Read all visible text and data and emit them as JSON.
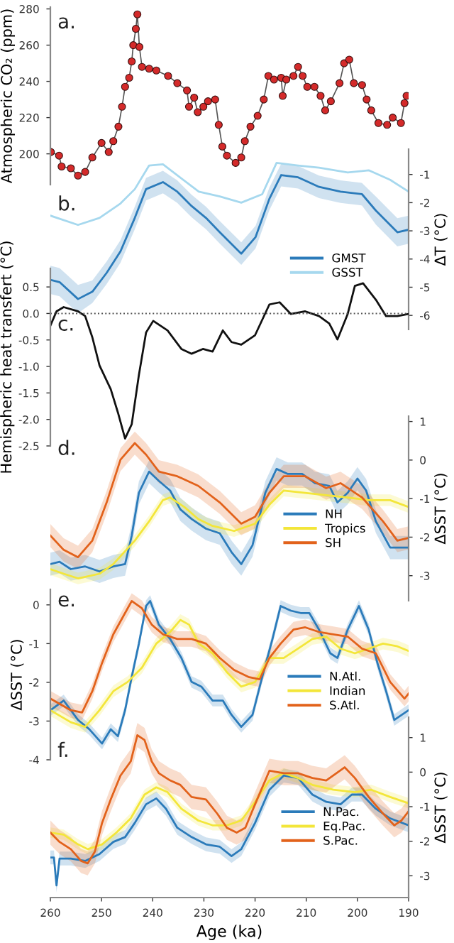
{
  "chart_data": [
    {
      "type": "line",
      "ylabel": "Atmospheric CO₂ (ppm)",
      "annotations": [
        "a."
      ],
      "xlim": [
        260,
        190
      ],
      "ylim": [
        183,
        281
      ],
      "yticks": [
        200,
        220,
        240,
        260,
        280
      ],
      "tick_labels": "y",
      "marker": "circle",
      "series": [
        {
          "color": "#d42a2a",
          "x": [
            259.9,
            258.3,
            257.8,
            256,
            254.6,
            253.2,
            251.8,
            250,
            248.6,
            247.7,
            246.7,
            246,
            245.4,
            244.6,
            244.1,
            243.8,
            243.3,
            243,
            242.6,
            242.1,
            240.7,
            239.3,
            237,
            235.2,
            233.3,
            232.9,
            231.9,
            231.2,
            230.1,
            229.2,
            227.8,
            227.1,
            226.4,
            225.5,
            223.8,
            222.7,
            222,
            220.9,
            219.5,
            218.3,
            217.4,
            216.3,
            214.9,
            214.6,
            213.9,
            212.5,
            211.6,
            210.7,
            209.8,
            208.4,
            207.2,
            206.3,
            205.2,
            203.5,
            202.6,
            201.6,
            200.7,
            199.1,
            198.2,
            197.3,
            195.9,
            194.2,
            193.1,
            191.5,
            190.8,
            190.4
          ],
          "values": [
            201,
            199,
            193,
            192,
            188,
            190,
            198,
            206,
            201,
            207,
            215,
            226,
            237,
            242,
            251,
            260,
            269,
            277,
            259,
            248,
            247,
            246,
            243,
            239,
            235,
            226,
            231,
            223,
            226,
            229,
            230,
            216,
            204,
            199,
            195,
            198,
            207,
            215,
            221,
            230,
            243,
            241,
            242,
            232,
            241,
            243,
            248,
            243,
            237,
            237,
            232,
            224,
            229,
            239,
            250,
            252,
            239,
            238,
            230,
            224,
            217,
            216,
            220,
            217,
            228,
            232
          ]
        }
      ]
    },
    {
      "type": "line",
      "y2label": "ΔT (°C)",
      "annotations": [
        "b."
      ],
      "xlim": [
        260,
        190
      ],
      "y2lim": [
        -6.5,
        -0.1
      ],
      "y2ticks": [
        -1,
        -2,
        -3,
        -4,
        -5,
        -6
      ],
      "tick_labels": "y2",
      "legend": "bottom right",
      "series": [
        {
          "name": "GMST",
          "color": "#2b7bba",
          "axis": "y2",
          "x": [
            260,
            258.2,
            254.6,
            251.8,
            249,
            246.3,
            243.5,
            241.3,
            238,
            235.2,
            232.4,
            229.6,
            226.9,
            222.7,
            219.9,
            217.2,
            214.9,
            211.6,
            207.5,
            203.3,
            199.1,
            196.4,
            192.2,
            190
          ],
          "values": [
            -4.74,
            -4.82,
            -5.42,
            -5.16,
            -4.49,
            -3.73,
            -2.54,
            -1.52,
            -1.27,
            -1.61,
            -2.12,
            -2.54,
            -3.05,
            -3.81,
            -3.22,
            -1.86,
            -1.02,
            -1.1,
            -1.44,
            -1.61,
            -1.7,
            -2.28,
            -3.05,
            -2.96
          ],
          "upper": [
            -4.24,
            -4.32,
            -4.92,
            -4.76,
            -4.09,
            -3.33,
            -2.14,
            -1.12,
            -0.87,
            -1.21,
            -1.72,
            -2.14,
            -2.65,
            -3.41,
            -2.82,
            -1.46,
            -0.62,
            -0.7,
            -1.04,
            -1.21,
            -1.3,
            -1.78,
            -2.55,
            -2.46
          ],
          "lower": [
            -5.24,
            -5.32,
            -5.92,
            -5.56,
            -4.89,
            -4.13,
            -2.94,
            -1.92,
            -1.67,
            -2.01,
            -2.52,
            -2.94,
            -3.45,
            -4.21,
            -3.62,
            -2.26,
            -1.42,
            -1.5,
            -1.84,
            -2.01,
            -2.1,
            -2.78,
            -3.55,
            -3.46
          ]
        },
        {
          "name": "GSST",
          "color": "#a6d8ee",
          "axis": "y2",
          "x": [
            260,
            254.6,
            250.4,
            246.3,
            243.5,
            240.7,
            238,
            231,
            226.9,
            222.7,
            218.6,
            215.8,
            211.6,
            207.5,
            201.9,
            197.8,
            193.6,
            190
          ],
          "values": [
            -2.46,
            -2.79,
            -2.54,
            -2.03,
            -1.52,
            -0.68,
            -0.64,
            -1.61,
            -1.78,
            -2.0,
            -1.7,
            -0.59,
            -0.68,
            -0.76,
            -0.93,
            -0.85,
            -1.19,
            -1.61
          ]
        }
      ]
    },
    {
      "type": "line",
      "ylabel": "Hemispheric heat transfert (°C)",
      "annotations": [
        "c."
      ],
      "xlim": [
        260,
        190
      ],
      "ylim": [
        -2.5,
        0.85
      ],
      "yticks": [
        0.5,
        {
          "value": 0,
          "label": "0.0"
        },
        -0.5,
        {
          "value": -1,
          "label": "-1.0"
        },
        -1.5,
        {
          "value": -2,
          "label": "-2.0"
        },
        -2.5
      ],
      "tick_labels": "y",
      "ref_lines": [
        {
          "axis": "y",
          "value": 0,
          "color": "#555555",
          "line_style": "dotted"
        }
      ],
      "series": [
        {
          "color": "#111111",
          "x": [
            260,
            258.8,
            257.4,
            254.6,
            253.2,
            251.8,
            250.4,
            248.2,
            246.8,
            245.4,
            244.1,
            242.7,
            241.3,
            239.9,
            237.1,
            234.4,
            232.4,
            230.2,
            228.3,
            226.3,
            224.6,
            222.7,
            220,
            217.2,
            215.2,
            213,
            210.2,
            207.5,
            205.5,
            203.9,
            201.9,
            200.5,
            198.9,
            196.4,
            194.4,
            192.2,
            190
          ],
          "values": [
            -0.23,
            0.04,
            0.12,
            0.04,
            -0.05,
            -0.45,
            -0.98,
            -1.43,
            -1.87,
            -2.36,
            -2.09,
            -1.16,
            -0.36,
            -0.14,
            -0.32,
            -0.67,
            -0.76,
            -0.67,
            -0.72,
            -0.32,
            -0.54,
            -0.59,
            -0.41,
            0.17,
            0.21,
            -0.01,
            0.04,
            -0.05,
            -0.19,
            -0.49,
            -0.01,
            0.52,
            0.57,
            0.26,
            -0.05,
            -0.05,
            -0.01
          ]
        }
      ]
    },
    {
      "type": "line",
      "y2label": "ΔSST (°C)",
      "annotations": [
        "d."
      ],
      "xlim": [
        260,
        190
      ],
      "y2lim": [
        -3.65,
        1.14
      ],
      "y2ticks": [
        1,
        0,
        -1,
        -2,
        -3
      ],
      "tick_labels": "y2",
      "legend": "bottom right",
      "series": [
        {
          "name": "NH",
          "color": "#2b7bba",
          "axis": "y2",
          "x": [
            260,
            258.2,
            256,
            253.2,
            250.4,
            247.7,
            245.4,
            244.1,
            242.7,
            240.7,
            238.8,
            236.6,
            234.6,
            232.4,
            229.6,
            226.9,
            224.6,
            222.7,
            220.5,
            218,
            215.8,
            213.6,
            210.8,
            208.3,
            205.5,
            203.9,
            201.9,
            200,
            198.3,
            196.4,
            193.6,
            190
          ],
          "values": [
            -2.7,
            -2.64,
            -2.83,
            -2.76,
            -2.89,
            -2.76,
            -2.7,
            -1.96,
            -0.85,
            -0.3,
            -0.54,
            -0.79,
            -1.28,
            -1.53,
            -1.78,
            -1.9,
            -2.39,
            -2.7,
            -2.21,
            -0.85,
            -0.23,
            -0.36,
            -0.36,
            -0.6,
            -0.67,
            -1.1,
            -0.85,
            -0.48,
            -0.79,
            -1.59,
            -2.27,
            -2.27
          ],
          "upper": [
            -2.4,
            -2.34,
            -2.53,
            -2.46,
            -2.59,
            -2.46,
            -2.4,
            -1.66,
            -0.55,
            0.0,
            -0.24,
            -0.49,
            -0.98,
            -1.23,
            -1.48,
            -1.6,
            -2.09,
            -2.4,
            -1.91,
            -0.55,
            0.07,
            -0.06,
            -0.06,
            -0.3,
            -0.37,
            -0.8,
            -0.55,
            -0.18,
            -0.49,
            -1.29,
            -1.97,
            -1.97
          ],
          "lower": [
            -3.0,
            -2.94,
            -3.13,
            -3.06,
            -3.19,
            -3.06,
            -3.0,
            -2.26,
            -1.15,
            -0.6,
            -0.84,
            -1.09,
            -1.58,
            -1.83,
            -2.08,
            -2.2,
            -2.69,
            -3.0,
            -2.51,
            -1.15,
            -0.53,
            -0.66,
            -0.66,
            -0.9,
            -0.97,
            -1.4,
            -1.15,
            -0.78,
            -1.09,
            -1.89,
            -2.57,
            -2.57
          ]
        },
        {
          "name": "Tropics",
          "color": "#f3e63a",
          "axis": "y2",
          "x": [
            260,
            257.4,
            254.6,
            250.4,
            247.7,
            243.5,
            240.7,
            238,
            236.6,
            233.8,
            231.1,
            228.3,
            224.1,
            220,
            217.2,
            214.4,
            210.2,
            206.1,
            201.9,
            197.8,
            193.6,
            190
          ],
          "values": [
            -2.83,
            -2.95,
            -3.07,
            -2.95,
            -2.7,
            -2.09,
            -1.59,
            -1.04,
            -0.97,
            -1.22,
            -1.53,
            -1.71,
            -1.84,
            -1.65,
            -1.16,
            -0.79,
            -0.85,
            -0.91,
            -0.97,
            -1.04,
            -1.04,
            -1.22
          ],
          "upper": [
            -2.68,
            -2.8,
            -2.92,
            -2.8,
            -2.55,
            -1.94,
            -1.44,
            -0.89,
            -0.82,
            -1.07,
            -1.38,
            -1.56,
            -1.69,
            -1.5,
            -1.01,
            -0.64,
            -0.7,
            -0.76,
            -0.82,
            -0.89,
            -0.89,
            -1.07
          ],
          "lower": [
            -2.98,
            -3.1,
            -3.22,
            -3.1,
            -2.85,
            -2.24,
            -1.74,
            -1.19,
            -1.12,
            -1.37,
            -1.68,
            -1.86,
            -1.99,
            -1.8,
            -1.31,
            -0.94,
            -1.0,
            -1.06,
            -1.12,
            -1.19,
            -1.19,
            -1.37
          ]
        },
        {
          "name": "SH",
          "color": "#e2621b",
          "axis": "y2",
          "x": [
            260,
            257.4,
            254.6,
            251.8,
            249,
            246.3,
            243.5,
            241.3,
            238.8,
            235.2,
            231.1,
            226.9,
            222.7,
            220,
            217.2,
            214.4,
            210.2,
            206.1,
            203.3,
            199.1,
            195,
            192.2,
            190
          ],
          "values": [
            -1.96,
            -2.33,
            -2.52,
            -2.09,
            -1.1,
            0.01,
            0.44,
            0.14,
            -0.3,
            -0.42,
            -0.67,
            -1.1,
            -1.65,
            -1.47,
            -0.85,
            -0.42,
            -0.42,
            -0.73,
            -0.6,
            -0.97,
            -1.59,
            -2.09,
            -2.02
          ],
          "upper": [
            -1.66,
            -2.03,
            -2.22,
            -1.79,
            -0.8,
            0.31,
            0.74,
            0.44,
            0.0,
            -0.12,
            -0.37,
            -0.8,
            -1.35,
            -1.17,
            -0.55,
            -0.12,
            -0.12,
            -0.43,
            -0.3,
            -0.67,
            -1.29,
            -1.79,
            -1.72
          ],
          "lower": [
            -2.26,
            -2.63,
            -2.82,
            -2.39,
            -1.4,
            -0.29,
            0.14,
            -0.16,
            -0.6,
            -0.72,
            -0.97,
            -1.4,
            -1.95,
            -1.77,
            -1.15,
            -0.72,
            -0.72,
            -1.03,
            -0.9,
            -1.27,
            -1.89,
            -2.39,
            -2.32
          ]
        }
      ]
    },
    {
      "type": "line",
      "ylabel": "ΔSST (°C)",
      "annotations": [
        "e."
      ],
      "xlim": [
        260,
        190
      ],
      "ylim": [
        -4,
        0.4
      ],
      "yticks": [
        0,
        -1,
        -2,
        -3,
        -4
      ],
      "tick_labels": "y",
      "legend": "bottom right",
      "series": [
        {
          "name": "N.Atl.",
          "color": "#2b7bba",
          "x": [
            260,
            257.4,
            254.6,
            252.4,
            249.9,
            248.2,
            246.8,
            245.4,
            244.1,
            242.7,
            241.3,
            240.5,
            238.8,
            236.6,
            234.4,
            232.4,
            230.5,
            228.3,
            226.3,
            224.6,
            222.7,
            220.5,
            218.6,
            216.6,
            215,
            213,
            211.1,
            209.4,
            207.5,
            205.3,
            203.9,
            201.9,
            199.7,
            197.8,
            196.1,
            194.4,
            192.8,
            190
          ],
          "values": [
            -2.72,
            -2.47,
            -2.97,
            -3.21,
            -3.58,
            -3.21,
            -3.39,
            -2.72,
            -1.86,
            -1.0,
            -0.03,
            0.1,
            -0.51,
            -0.88,
            -1.37,
            -1.99,
            -2.11,
            -2.47,
            -2.47,
            -2.84,
            -3.15,
            -2.84,
            -1.86,
            -0.88,
            -0.03,
            -0.15,
            -0.21,
            -0.21,
            -0.64,
            -1.25,
            -1.37,
            -0.64,
            -0.03,
            -0.64,
            -1.5,
            -2.23,
            -2.97,
            -2.72
          ],
          "upper": [
            -2.57,
            -2.32,
            -2.82,
            -3.06,
            -3.43,
            -3.06,
            -3.24,
            -2.57,
            -1.71,
            -0.85,
            0.12,
            0.25,
            -0.36,
            -0.73,
            -1.22,
            -1.84,
            -1.96,
            -2.32,
            -2.32,
            -2.69,
            -3.0,
            -2.69,
            -1.71,
            -0.73,
            0.12,
            0.0,
            -0.06,
            -0.06,
            -0.49,
            -1.1,
            -1.22,
            -0.49,
            0.12,
            -0.49,
            -1.35,
            -2.08,
            -2.82,
            -2.57
          ],
          "lower": [
            -2.87,
            -2.62,
            -3.12,
            -3.36,
            -3.73,
            -3.36,
            -3.54,
            -2.87,
            -2.01,
            -1.15,
            -0.18,
            -0.05,
            -0.66,
            -1.03,
            -1.52,
            -2.14,
            -2.26,
            -2.62,
            -2.62,
            -2.99,
            -3.3,
            -2.99,
            -2.01,
            -1.03,
            -0.18,
            -0.3,
            -0.36,
            -0.36,
            -0.79,
            -1.4,
            -1.52,
            -0.79,
            -0.18,
            -0.79,
            -1.65,
            -2.38,
            -3.12,
            -2.87
          ]
        },
        {
          "name": "Indian",
          "color": "#f3e63a",
          "x": [
            260,
            256,
            253.2,
            250.4,
            247.7,
            244.9,
            242.1,
            239.3,
            236.6,
            234.6,
            232.9,
            231,
            228.3,
            225.5,
            222.7,
            220,
            217.2,
            214.4,
            211.6,
            208.8,
            206.1,
            203.3,
            200.5,
            197.8,
            195,
            192.2,
            190
          ],
          "values": [
            -2.72,
            -3.03,
            -3.15,
            -2.72,
            -2.23,
            -1.99,
            -1.62,
            -1.0,
            -0.7,
            -0.39,
            -0.51,
            -1.0,
            -1.25,
            -1.74,
            -2.11,
            -1.99,
            -1.37,
            -1.37,
            -1.13,
            -0.88,
            -0.82,
            -1.13,
            -1.25,
            -1.13,
            -1.0,
            -1.07,
            -1.19
          ],
          "upper": [
            -2.57,
            -2.88,
            -3.0,
            -2.57,
            -2.08,
            -1.84,
            -1.47,
            -0.85,
            -0.55,
            -0.24,
            -0.36,
            -0.85,
            -1.1,
            -1.59,
            -1.96,
            -1.84,
            -1.22,
            -1.22,
            -0.98,
            -0.73,
            -0.67,
            -0.98,
            -1.1,
            -0.98,
            -0.85,
            -0.92,
            -1.04
          ],
          "lower": [
            -2.87,
            -3.18,
            -3.3,
            -2.87,
            -2.38,
            -2.14,
            -1.77,
            -1.15,
            -0.85,
            -0.54,
            -0.66,
            -1.15,
            -1.4,
            -1.89,
            -2.26,
            -2.14,
            -1.52,
            -1.52,
            -1.28,
            -1.03,
            -0.97,
            -1.28,
            -1.4,
            -1.28,
            -1.15,
            -1.22,
            -1.34
          ]
        },
        {
          "name": "S.Atl.",
          "color": "#e2621b",
          "x": [
            260,
            256,
            253.8,
            251.8,
            249.9,
            247.7,
            245.4,
            244.1,
            242.1,
            240.2,
            238,
            235.2,
            232.4,
            229.6,
            226.9,
            224.1,
            221.3,
            219.1,
            217.2,
            215,
            212.5,
            210.2,
            207.5,
            204.7,
            201.9,
            199.1,
            196.4,
            193.6,
            190.8,
            190
          ],
          "values": [
            -2.42,
            -2.72,
            -2.78,
            -2.23,
            -1.5,
            -0.76,
            -0.21,
            0.1,
            -0.09,
            -0.51,
            -0.76,
            -0.88,
            -0.88,
            -1.0,
            -1.37,
            -1.68,
            -1.86,
            -1.92,
            -1.37,
            -1.0,
            -0.64,
            -0.58,
            -0.7,
            -0.76,
            -0.82,
            -1.13,
            -1.25,
            -1.99,
            -2.42,
            -2.29
          ],
          "upper": [
            -2.22,
            -2.52,
            -2.58,
            -2.03,
            -1.3,
            -0.56,
            -0.01,
            0.3,
            0.11,
            -0.31,
            -0.56,
            -0.68,
            -0.68,
            -0.8,
            -1.17,
            -1.48,
            -1.66,
            -1.72,
            -1.17,
            -0.8,
            -0.44,
            -0.38,
            -0.5,
            -0.56,
            -0.62,
            -0.93,
            -1.05,
            -1.79,
            -2.22,
            -2.09
          ],
          "lower": [
            -2.62,
            -2.92,
            -2.98,
            -2.43,
            -1.7,
            -0.96,
            -0.41,
            -0.1,
            -0.29,
            -0.71,
            -0.96,
            -1.08,
            -1.08,
            -1.2,
            -1.57,
            -1.88,
            -2.06,
            -2.12,
            -1.57,
            -1.2,
            -0.84,
            -0.78,
            -0.9,
            -0.96,
            -1.02,
            -1.33,
            -1.45,
            -2.19,
            -2.62,
            -2.49
          ]
        }
      ]
    },
    {
      "type": "line",
      "xlabel": "Age (ka)",
      "y2label": "ΔSST (°C)",
      "annotations": [
        "f."
      ],
      "xlim": [
        260,
        190
      ],
      "xticks": [
        260,
        250,
        240,
        230,
        220,
        210,
        200,
        190
      ],
      "y2lim": [
        -3.63,
        1.59
      ],
      "y2ticks": [
        1,
        0,
        -1,
        -2,
        -3
      ],
      "legend": "bottom right",
      "series": [
        {
          "name": "N.Pac.",
          "color": "#2b7bba",
          "axis": "y2",
          "x": [
            260,
            259.3,
            258.8,
            258.2,
            256,
            253.2,
            250.4,
            247.7,
            245.4,
            243.5,
            241.3,
            239.3,
            237.4,
            235.2,
            232.4,
            229.6,
            226.9,
            224.6,
            222.7,
            220,
            217.2,
            214.4,
            211.6,
            208.8,
            206.1,
            203.3,
            201.1,
            199.1,
            196.4,
            193.6,
            190
          ],
          "values": [
            -2.47,
            -2.47,
            -3.28,
            -2.5,
            -2.5,
            -2.57,
            -2.37,
            -2.02,
            -1.88,
            -1.47,
            -0.93,
            -0.76,
            -1.06,
            -1.61,
            -1.88,
            -2.09,
            -2.16,
            -2.43,
            -2.23,
            -1.47,
            -0.51,
            -0.1,
            -0.17,
            -0.65,
            -0.86,
            -0.93,
            -0.65,
            -0.65,
            -1.06,
            -1.34,
            -1.54
          ],
          "upper": [
            -2.27,
            -2.27,
            -3.08,
            -2.3,
            -2.3,
            -2.37,
            -2.17,
            -1.82,
            -1.68,
            -1.27,
            -0.73,
            -0.56,
            -0.86,
            -1.41,
            -1.68,
            -1.89,
            -1.96,
            -2.23,
            -2.03,
            -1.27,
            -0.31,
            0.1,
            0.03,
            -0.45,
            -0.66,
            -0.73,
            -0.45,
            -0.45,
            -0.86,
            -1.14,
            -1.34
          ],
          "lower": [
            -2.67,
            -2.67,
            -3.48,
            -2.7,
            -2.7,
            -2.77,
            -2.57,
            -2.22,
            -2.08,
            -1.67,
            -1.13,
            -0.96,
            -1.26,
            -1.81,
            -2.08,
            -2.29,
            -2.36,
            -2.63,
            -2.43,
            -1.67,
            -0.71,
            -0.3,
            -0.37,
            -0.85,
            -1.06,
            -1.13,
            -0.85,
            -0.85,
            -1.26,
            -1.54,
            -1.74
          ]
        },
        {
          "name": "Eq.Pac.",
          "color": "#f3e63a",
          "axis": "y2",
          "x": [
            260,
            257.4,
            254.6,
            252.7,
            249.9,
            247.1,
            244.3,
            241.6,
            239.3,
            237.1,
            234.4,
            231.1,
            228.3,
            225.5,
            222.7,
            220,
            217.2,
            214.4,
            211.6,
            208.8,
            204.7,
            200.5,
            197.3,
            193.6,
            190
          ],
          "values": [
            -1.75,
            -1.81,
            -2.09,
            -2.23,
            -2.09,
            -1.75,
            -1.34,
            -0.65,
            -0.44,
            -0.58,
            -1.06,
            -1.4,
            -1.54,
            -1.54,
            -1.4,
            -0.86,
            -0.24,
            -0.03,
            -0.17,
            -0.37,
            -0.51,
            -0.58,
            -0.51,
            -0.72,
            -0.9
          ],
          "upper": [
            -1.6,
            -1.66,
            -1.94,
            -2.08,
            -1.94,
            -1.6,
            -1.19,
            -0.5,
            -0.29,
            -0.43,
            -0.91,
            -1.25,
            -1.39,
            -1.39,
            -1.25,
            -0.71,
            -0.09,
            0.12,
            -0.02,
            -0.22,
            -0.36,
            -0.43,
            -0.36,
            -0.57,
            -0.75
          ],
          "lower": [
            -1.9,
            -1.96,
            -2.24,
            -2.38,
            -2.24,
            -1.9,
            -1.49,
            -0.8,
            -0.59,
            -0.73,
            -1.21,
            -1.55,
            -1.69,
            -1.69,
            -1.55,
            -1.01,
            -0.39,
            -0.18,
            -0.32,
            -0.52,
            -0.66,
            -0.73,
            -0.66,
            -0.87,
            -1.05
          ]
        },
        {
          "name": "S.Pac.",
          "color": "#e2621b",
          "axis": "y2",
          "x": [
            260,
            258.2,
            256,
            254,
            252.7,
            251.3,
            249.9,
            248.2,
            246.3,
            244.3,
            243,
            241.6,
            240.2,
            238.8,
            236.6,
            234.6,
            232.4,
            229.6,
            227.4,
            225.5,
            223.6,
            221.9,
            220,
            217.2,
            214.4,
            211.6,
            208.8,
            206.1,
            204.1,
            202.5,
            200.5,
            197.8,
            195,
            192.8,
            191.4,
            190
          ],
          "values": [
            -1.75,
            -2.02,
            -2.23,
            -2.57,
            -2.64,
            -2.3,
            -1.47,
            -0.79,
            -0.1,
            0.31,
            1.07,
            0.93,
            0.31,
            -0.03,
            -0.24,
            -0.37,
            -0.72,
            -0.79,
            -1.2,
            -1.61,
            -1.75,
            -1.61,
            -0.93,
            0.04,
            -0.03,
            -0.03,
            -0.17,
            -0.24,
            -0.03,
            0.14,
            -0.17,
            -0.72,
            -1.2,
            -1.54,
            -1.4,
            -1.13
          ],
          "upper": [
            -1.4,
            -1.67,
            -1.88,
            -2.22,
            -2.29,
            -1.95,
            -1.12,
            -0.44,
            0.25,
            0.66,
            1.42,
            1.28,
            0.66,
            0.32,
            0.11,
            -0.02,
            -0.37,
            -0.44,
            -0.85,
            -1.26,
            -1.4,
            -1.26,
            -0.58,
            0.39,
            0.32,
            0.32,
            0.18,
            0.11,
            0.32,
            0.49,
            0.18,
            -0.37,
            -0.85,
            -1.19,
            -1.05,
            -0.78
          ],
          "lower": [
            -2.1,
            -2.37,
            -2.58,
            -2.92,
            -2.99,
            -2.65,
            -1.82,
            -1.14,
            -0.45,
            -0.04,
            0.72,
            0.58,
            -0.04,
            -0.38,
            -0.59,
            -0.72,
            -1.07,
            -1.14,
            -1.55,
            -1.96,
            -2.1,
            -1.96,
            -1.28,
            -0.31,
            -0.38,
            -0.38,
            -0.52,
            -0.59,
            -0.38,
            -0.21,
            -0.52,
            -1.07,
            -1.55,
            -1.89,
            -1.75,
            -1.48
          ]
        }
      ]
    }
  ]
}
